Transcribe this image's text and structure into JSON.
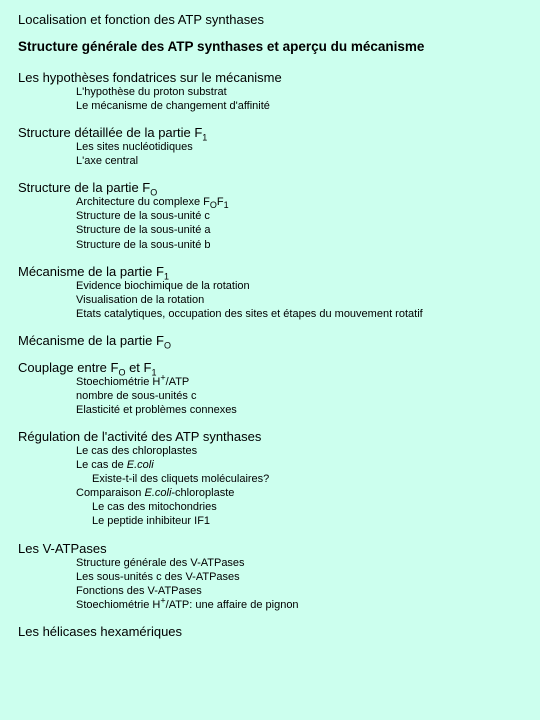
{
  "colors": {
    "background": "#ccffee",
    "text": "#000000"
  },
  "top_link": "Localisation et fonction des ATP synthases",
  "main_title": "Structure générale des ATP synthases et aperçu du mécanisme",
  "s1": {
    "head": "Les hypothèses fondatrices sur le mécanisme",
    "i1": "L'hypothèse du proton substrat",
    "i2": "Le mécanisme de changement d'affinité"
  },
  "s2": {
    "head_pre": "Structure détaillée de la partie F",
    "head_sub": "1",
    "i1": "Les sites nucléotidiques",
    "i2": "L'axe central"
  },
  "s3": {
    "head_pre": "Structure de la partie F",
    "head_sub": "O",
    "i1_pre": "Architecture du complexe F",
    "i1_s1": "O",
    "i1_mid": "F",
    "i1_s2": "1",
    "i2": "Structure de la sous-unité c",
    "i3": "Structure de la sous-unité a",
    "i4": "Structure de la sous-unité b"
  },
  "s4": {
    "head_pre": "Mécanisme de la partie F",
    "head_sub": "1",
    "i1": "Evidence biochimique de la rotation",
    "i2": "Visualisation de la rotation",
    "i3": "Etats catalytiques, occupation des sites et étapes du mouvement rotatif"
  },
  "s5": {
    "head_pre": "Mécanisme de la partie F",
    "head_sub": "O"
  },
  "s6": {
    "head_pre": "Couplage entre F",
    "head_s1": "O",
    "head_mid": " et F",
    "head_s2": "1",
    "i1_pre": "Stoechiométrie H",
    "i1_sup": "+",
    "i1_post": "/ATP",
    "i2": "nombre de sous-unités c",
    "i3": "Elasticité et problèmes connexes"
  },
  "s7": {
    "head": "Régulation de l'activité des ATP synthases",
    "i1": "Le cas des chloroplastes",
    "i2_pre": "Le cas de ",
    "i2_em": "E.coli",
    "i2b": "Existe-t-il des cliquets moléculaires?",
    "i3_pre": "Comparaison ",
    "i3_em": "E.coli",
    "i3_post": "-chloroplaste",
    "i3b": "Le cas des mitochondries",
    "i3c": "Le peptide inhibiteur IF1"
  },
  "s8": {
    "head": "Les V-ATPases",
    "i1": "Structure générale des V-ATPases",
    "i2": "Les sous-unités c des V-ATPases",
    "i3": "Fonctions des V-ATPases",
    "i4_pre": "Stoechiométrie H",
    "i4_sup": "+",
    "i4_post": "/ATP: une affaire de pignon"
  },
  "s9": {
    "head": "Les hélicases hexamériques"
  }
}
